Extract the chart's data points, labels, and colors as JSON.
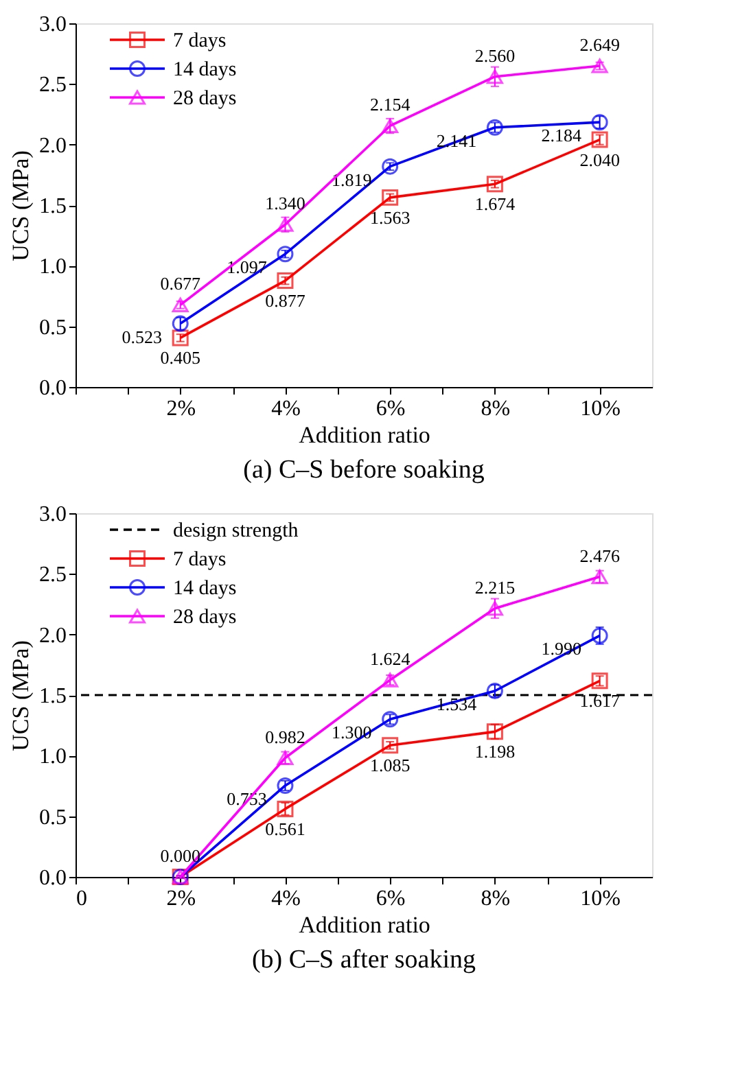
{
  "chart_data": [
    {
      "type": "line",
      "title": "(a) C–S before soaking",
      "xlabel": "Addition ratio",
      "ylabel": "UCS (MPa)",
      "x": [
        2,
        4,
        6,
        8,
        10
      ],
      "series": [
        {
          "name": "7 days",
          "color": "#ff0000",
          "marker": "square",
          "values": [
            0.405,
            0.877,
            1.563,
            1.674,
            2.04
          ],
          "errors": [
            0.03,
            0.03,
            0.03,
            0.03,
            0.04
          ],
          "value_labels": [
            "0.405",
            "0.877",
            "1.563",
            "1.674",
            "2.040"
          ]
        },
        {
          "name": "14 days",
          "color": "#0000ff",
          "marker": "circle",
          "values": [
            0.523,
            1.097,
            1.819,
            2.141,
            2.184
          ],
          "errors": [
            0.05,
            0.03,
            0.03,
            0.04,
            0.05
          ],
          "value_labels": [
            "0.523",
            "1.097",
            "1.819",
            "2.141",
            "2.184"
          ]
        },
        {
          "name": "28 days",
          "color": "#ff00ff",
          "marker": "triangle",
          "values": [
            0.677,
            1.34,
            2.154,
            2.56,
            2.649
          ],
          "errors": [
            0.03,
            0.06,
            0.06,
            0.08,
            0.03
          ],
          "value_labels": [
            "0.677",
            "1.340",
            "2.154",
            "2.560",
            "2.649"
          ]
        }
      ],
      "xlim": [
        0,
        11
      ],
      "xticks": [
        {
          "value": 0,
          "label": null
        },
        {
          "value": 1,
          "label": null
        },
        {
          "value": 2,
          "label": "2%"
        },
        {
          "value": 3,
          "label": null
        },
        {
          "value": 4,
          "label": "4%"
        },
        {
          "value": 5,
          "label": null
        },
        {
          "value": 6,
          "label": "6%"
        },
        {
          "value": 7,
          "label": null
        },
        {
          "value": 8,
          "label": "8%"
        },
        {
          "value": 9,
          "label": null
        },
        {
          "value": 10,
          "label": "10%"
        }
      ],
      "ylim": [
        0,
        3
      ],
      "yticks": [
        {
          "value": 0,
          "label": "0.0"
        },
        {
          "value": 0.5,
          "label": "0.5"
        },
        {
          "value": 1,
          "label": "1.0"
        },
        {
          "value": 1.5,
          "label": "1.5"
        },
        {
          "value": 2,
          "label": "2.0"
        },
        {
          "value": 2.5,
          "label": "2.5"
        },
        {
          "value": 3,
          "label": "3.0"
        }
      ],
      "legend": "top left",
      "grid": false,
      "line_style": "solid"
    },
    {
      "type": "line",
      "title": "(b) C–S after soaking",
      "xlabel": "Addition ratio",
      "ylabel": "UCS (MPa)",
      "x": [
        2,
        4,
        6,
        8,
        10
      ],
      "series": [
        {
          "name": "7 days",
          "color": "#ff0000",
          "marker": "square",
          "values": [
            0.0,
            0.561,
            1.085,
            1.198,
            1.617
          ],
          "errors": [
            0.01,
            0.05,
            0.03,
            0.06,
            0.04
          ],
          "value_labels": [
            null,
            "0.561",
            "1.085",
            "1.198",
            "1.617"
          ]
        },
        {
          "name": "14 days",
          "color": "#0000ff",
          "marker": "circle",
          "values": [
            0.0,
            0.753,
            1.3,
            1.534,
            1.99
          ],
          "errors": [
            0.01,
            0.04,
            0.04,
            0.05,
            0.07
          ],
          "value_labels": [
            null,
            "0.753",
            "1.300",
            "1.534",
            "1.990"
          ]
        },
        {
          "name": "28 days",
          "color": "#ff00ff",
          "marker": "triangle",
          "values": [
            0.0,
            0.982,
            1.624,
            2.215,
            2.476
          ],
          "errors": [
            0.01,
            0.05,
            0.04,
            0.08,
            0.05
          ],
          "value_labels": [
            "0.000",
            "0.982",
            "1.624",
            "2.215",
            "2.476"
          ]
        }
      ],
      "ref_lines": [
        {
          "axis": "y",
          "value": 1.5,
          "label": "design strength",
          "color": "#000000",
          "line_style": "dashed"
        }
      ],
      "xlim": [
        0,
        11
      ],
      "xticks": [
        {
          "value": 0,
          "label": "0"
        },
        {
          "value": 1,
          "label": null
        },
        {
          "value": 2,
          "label": "2%"
        },
        {
          "value": 3,
          "label": null
        },
        {
          "value": 4,
          "label": "4%"
        },
        {
          "value": 5,
          "label": null
        },
        {
          "value": 6,
          "label": "6%"
        },
        {
          "value": 7,
          "label": null
        },
        {
          "value": 8,
          "label": "8%"
        },
        {
          "value": 9,
          "label": null
        },
        {
          "value": 10,
          "label": "10%"
        }
      ],
      "ylim": [
        0,
        3
      ],
      "yticks": [
        {
          "value": 0,
          "label": "0.0"
        },
        {
          "value": 0.5,
          "label": "0.5"
        },
        {
          "value": 1,
          "label": "1.0"
        },
        {
          "value": 1.5,
          "label": "1.5"
        },
        {
          "value": 2,
          "label": "2.0"
        },
        {
          "value": 2.5,
          "label": "2.5"
        },
        {
          "value": 3,
          "label": "3.0"
        }
      ],
      "legend": "top left",
      "grid": false,
      "line_style": "solid"
    }
  ]
}
